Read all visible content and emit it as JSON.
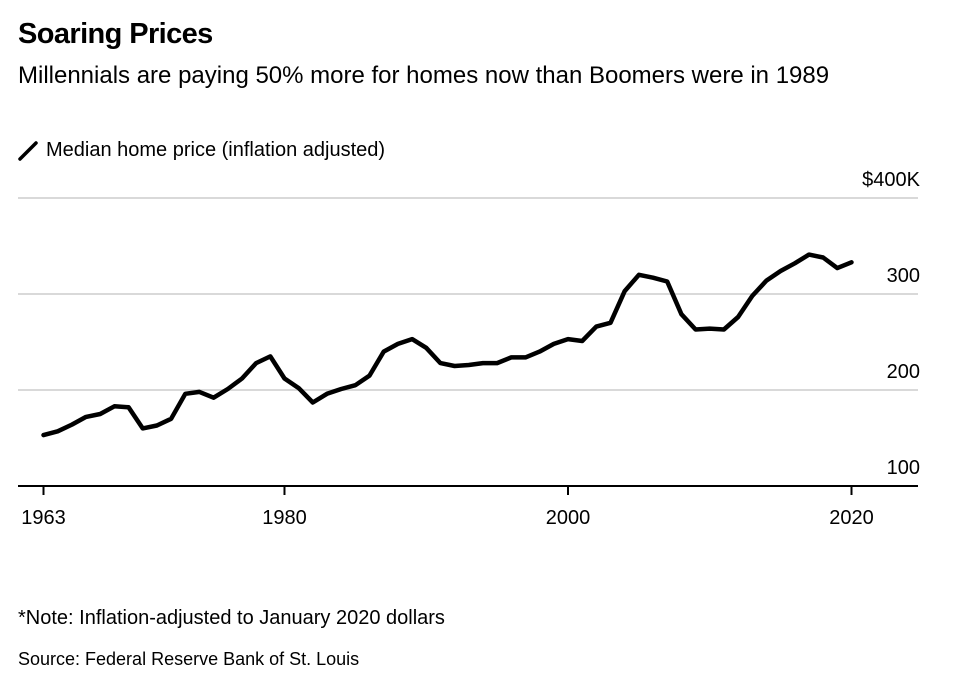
{
  "header": {
    "title": "Soaring Prices",
    "subtitle": "Millennials are paying 50% more for homes now than Boomers were in 1989",
    "legend_label": "Median home price (inflation adjusted)"
  },
  "footer": {
    "note": "*Note: Inflation-adjusted to January 2020 dollars",
    "source": "Source: Federal Reserve Bank of St. Louis"
  },
  "colors": {
    "line": "#000000",
    "grid": "#d9d9d9",
    "axis": "#000000",
    "background": "#ffffff"
  },
  "chart_data": {
    "type": "line",
    "title": "Soaring Prices",
    "subtitle": "Millennials are paying 50% more for homes now than Boomers were in 1989",
    "xlabel": "",
    "ylabel": "",
    "xlim": [
      1961,
      2025
    ],
    "ylim": [
      100,
      400
    ],
    "x_ticks": [
      1963,
      1980,
      2000,
      2020
    ],
    "x_tick_labels": [
      "1963",
      "1980",
      "2000",
      "2020"
    ],
    "y_ticks": [
      100,
      200,
      300,
      400
    ],
    "y_tick_labels": [
      "100",
      "200",
      "300",
      "$400K"
    ],
    "grid": true,
    "legend_position": "top-left",
    "series": [
      {
        "name": "Median home price (inflation adjusted)",
        "x": [
          1963,
          1964,
          1965,
          1966,
          1967,
          1968,
          1969,
          1970,
          1971,
          1972,
          1973,
          1974,
          1975,
          1976,
          1977,
          1978,
          1979,
          1980,
          1981,
          1982,
          1983,
          1984,
          1985,
          1986,
          1987,
          1988,
          1989,
          1990,
          1991,
          1992,
          1993,
          1994,
          1995,
          1996,
          1997,
          1998,
          1999,
          2000,
          2001,
          2002,
          2003,
          2004,
          2005,
          2006,
          2007,
          2008,
          2009,
          2010,
          2011,
          2012,
          2013,
          2014,
          2015,
          2016,
          2017,
          2018,
          2019,
          2020
        ],
        "y": [
          153,
          157,
          164,
          172,
          175,
          183,
          182,
          160,
          163,
          170,
          196,
          198,
          192,
          201,
          212,
          228,
          235,
          212,
          202,
          187,
          196,
          201,
          205,
          215,
          240,
          248,
          253,
          244,
          228,
          225,
          226,
          228,
          228,
          234,
          234,
          240,
          248,
          253,
          251,
          266,
          270,
          303,
          320,
          317,
          313,
          279,
          263,
          264,
          263,
          276,
          298,
          314,
          324,
          332,
          341,
          338,
          327,
          333
        ]
      }
    ]
  }
}
